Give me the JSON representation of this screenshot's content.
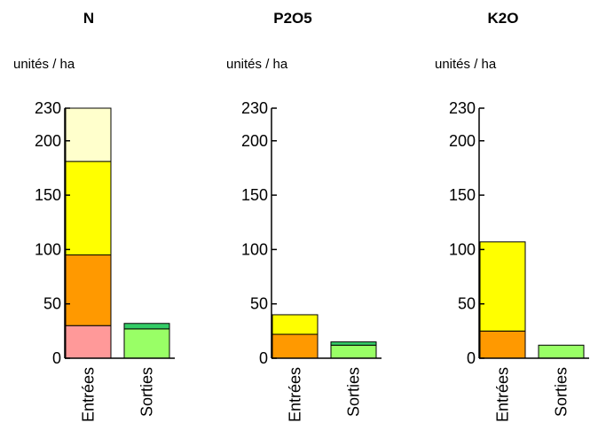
{
  "chart_data": [
    {
      "type": "bar",
      "stacked": true,
      "title": "N",
      "ylabel": "unités / ha",
      "ylim": [
        0,
        230
      ],
      "yticks": [
        0,
        50,
        100,
        150,
        200,
        230
      ],
      "categories": [
        "Entrées",
        "Sorties"
      ],
      "bars": [
        {
          "category": "Entrées",
          "segments": [
            {
              "value": 30,
              "color": "#ff9999"
            },
            {
              "value": 65,
              "color": "#ff9900"
            },
            {
              "value": 86,
              "color": "#ffff00"
            },
            {
              "value": 49,
              "color": "#ffffcc"
            }
          ]
        },
        {
          "category": "Sorties",
          "segments": [
            {
              "value": 27,
              "color": "#99ff66"
            },
            {
              "value": 5,
              "color": "#33cc66"
            }
          ]
        }
      ]
    },
    {
      "type": "bar",
      "stacked": true,
      "title": "P2O5",
      "ylabel": "unités / ha",
      "ylim": [
        0,
        230
      ],
      "yticks": [
        0,
        50,
        100,
        150,
        200,
        230
      ],
      "categories": [
        "Entrées",
        "Sorties"
      ],
      "bars": [
        {
          "category": "Entrées",
          "segments": [
            {
              "value": 22,
              "color": "#ff9900"
            },
            {
              "value": 18,
              "color": "#ffff00"
            }
          ]
        },
        {
          "category": "Sorties",
          "segments": [
            {
              "value": 12,
              "color": "#99ff66"
            },
            {
              "value": 3,
              "color": "#33cc66"
            }
          ]
        }
      ]
    },
    {
      "type": "bar",
      "stacked": true,
      "title": "K2O",
      "ylabel": "unités / ha",
      "ylim": [
        0,
        230
      ],
      "yticks": [
        0,
        50,
        100,
        150,
        200,
        230
      ],
      "categories": [
        "Entrées",
        "Sorties"
      ],
      "bars": [
        {
          "category": "Entrées",
          "segments": [
            {
              "value": 25,
              "color": "#ff9900"
            },
            {
              "value": 82,
              "color": "#ffff00"
            }
          ]
        },
        {
          "category": "Sorties",
          "segments": [
            {
              "value": 12,
              "color": "#99ff66"
            }
          ]
        }
      ]
    }
  ]
}
